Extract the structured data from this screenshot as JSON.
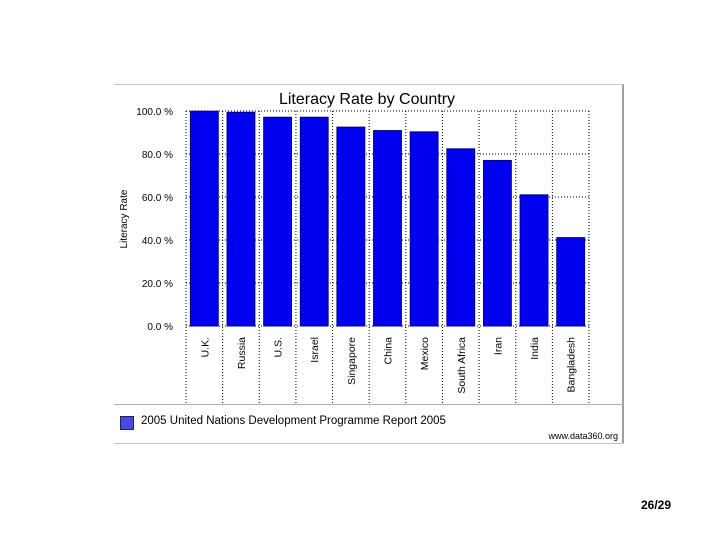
{
  "chart_data": {
    "type": "bar",
    "title": "Literacy Rate by Country",
    "xlabel": "",
    "ylabel": "Literacy Rate",
    "categories": [
      "U.K.",
      "Russia",
      "U.S.",
      "Israel",
      "Singapore",
      "China",
      "Mexico",
      "South Africa",
      "Iran",
      "India",
      "Bangladesh"
    ],
    "series": [
      {
        "name": "2005 United Nations Development Programme Report 2005",
        "values": [
          99.9,
          99.4,
          97.1,
          97.1,
          92.5,
          90.9,
          90.3,
          82.4,
          77.0,
          61.0,
          41.1
        ]
      }
    ],
    "ylim": [
      0,
      100
    ],
    "yticks": [
      "0.0 %",
      "20.0 %",
      "40.0 %",
      "60.0 %",
      "80.0 %",
      "100.0 %"
    ],
    "grid": true,
    "legend_position": "bottom",
    "bar_color": "#0000ee",
    "bar_edge_color": "#000080"
  },
  "legend": {
    "label": "2005 United Nations Development Programme Report 2005",
    "swatch_color": "#4a4ae8"
  },
  "source": "www.data360.org",
  "page_number": "26/29"
}
